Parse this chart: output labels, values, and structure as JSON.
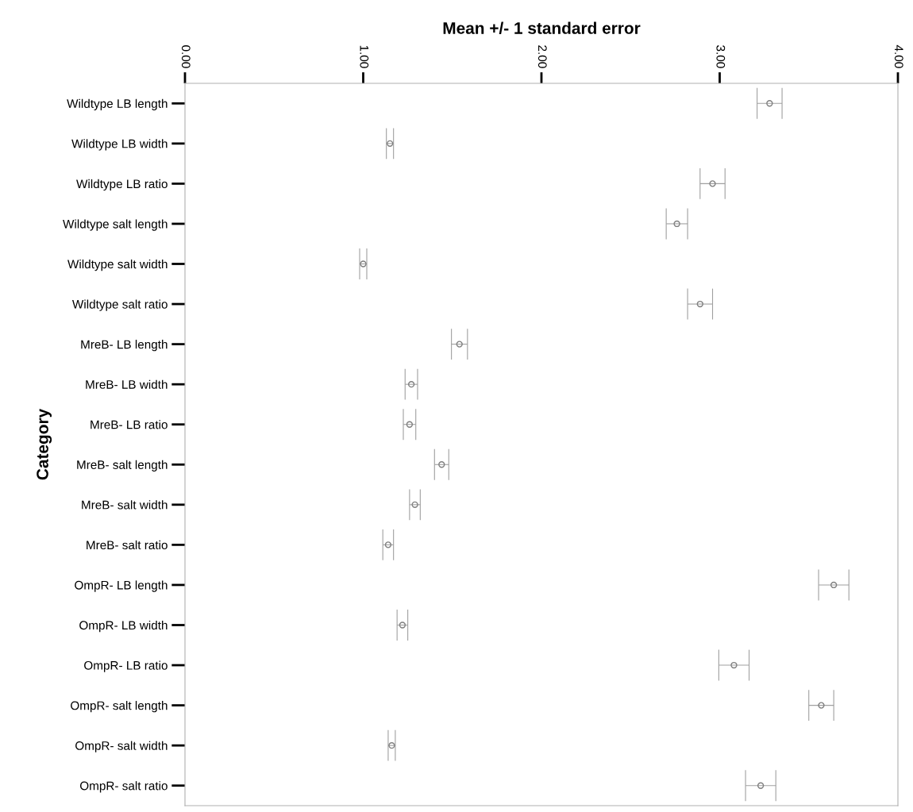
{
  "chart_data": {
    "type": "scatter",
    "orientation": "horizontal",
    "xlabel": "Mean +/- 1 standard error",
    "ylabel": "Category",
    "categories": [
      "Wildtype LB length",
      "Wildtype LB width",
      "Wildtype LB ratio",
      "Wildtype salt length",
      "Wildtype salt width",
      "Wildtype salt ratio",
      "MreB- LB length",
      "MreB- LB width",
      "MreB- LB ratio",
      "MreB- salt length",
      "MreB- salt width",
      "MreB- salt ratio",
      "OmpR- LB length",
      "OmpR- LB width",
      "OmpR- LB ratio",
      "OmpR- salt length",
      "OmpR- salt width",
      "OmpR- salt ratio"
    ],
    "values": [
      3.28,
      1.15,
      2.96,
      2.76,
      1.0,
      2.89,
      1.54,
      1.27,
      1.26,
      1.44,
      1.29,
      1.14,
      3.64,
      1.22,
      3.08,
      3.57,
      1.16,
      3.23
    ],
    "errors": [
      0.07,
      0.02,
      0.07,
      0.06,
      0.02,
      0.07,
      0.045,
      0.035,
      0.035,
      0.04,
      0.03,
      0.03,
      0.085,
      0.03,
      0.085,
      0.07,
      0.02,
      0.085
    ],
    "color": "#808080",
    "marker": "circle",
    "xlim": [
      0,
      4
    ],
    "xticks": [
      {
        "value": 0,
        "label": "0.00"
      },
      {
        "value": 1,
        "label": "1.00"
      },
      {
        "value": 2,
        "label": "2.00"
      },
      {
        "value": 3,
        "label": "3.00"
      },
      {
        "value": 4,
        "label": "4.00"
      }
    ],
    "grid": false,
    "legend": false
  }
}
